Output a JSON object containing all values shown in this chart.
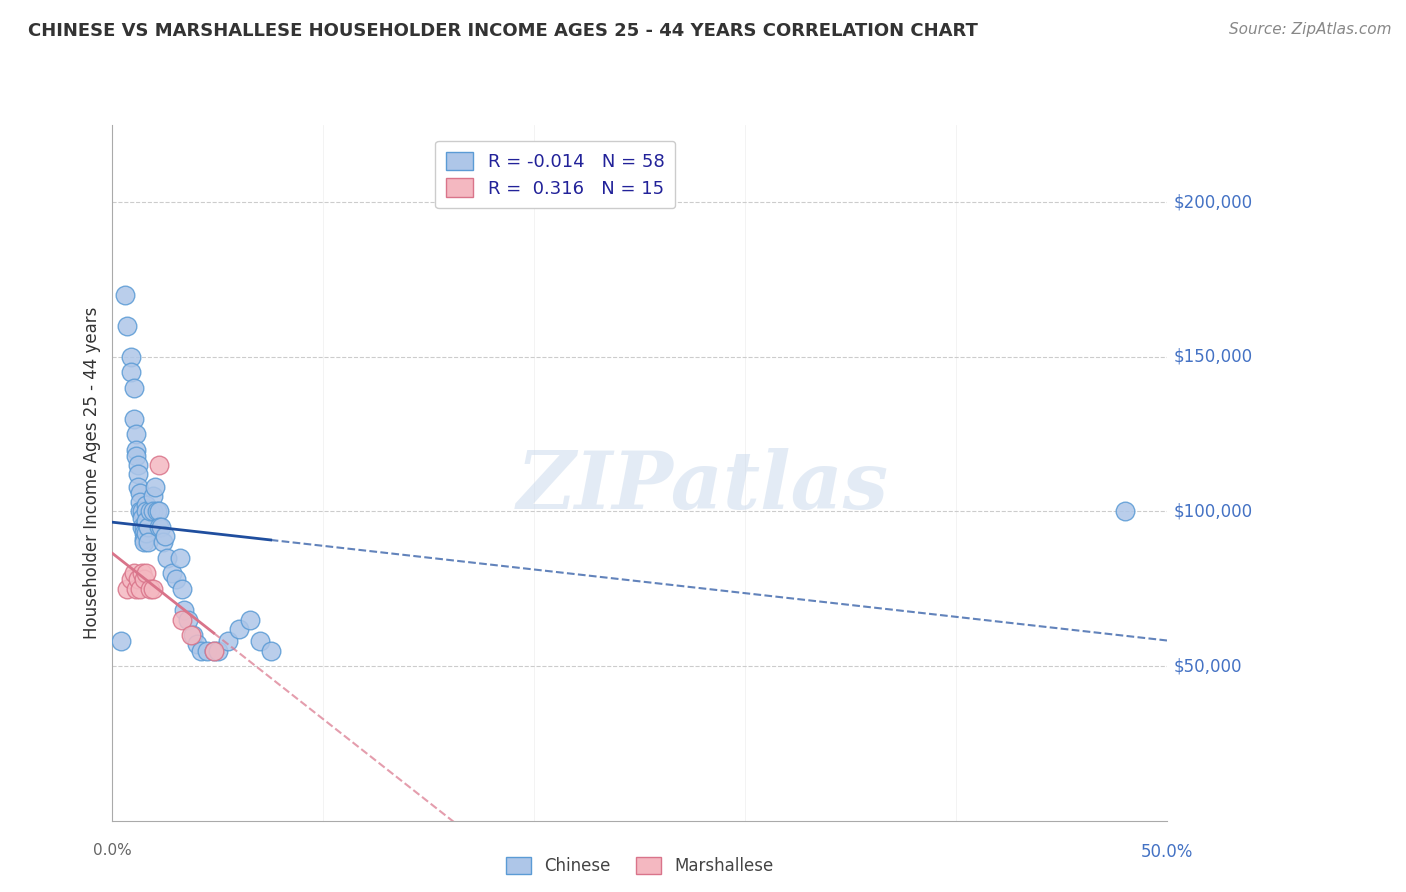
{
  "title": "CHINESE VS MARSHALLESE HOUSEHOLDER INCOME AGES 25 - 44 YEARS CORRELATION CHART",
  "source": "Source: ZipAtlas.com",
  "ylabel": "Householder Income Ages 25 - 44 years",
  "xlim": [
    0.0,
    0.5
  ],
  "ylim": [
    0,
    225000
  ],
  "ytick_labels": [
    "$50,000",
    "$100,000",
    "$150,000",
    "$200,000"
  ],
  "ytick_values": [
    50000,
    100000,
    150000,
    200000
  ],
  "chinese_color": "#aec6e8",
  "chinese_edge": "#5b9bd5",
  "marshallese_color": "#f4b8c1",
  "marshallese_edge": "#d9748a",
  "chinese_line_color": "#1f4e9e",
  "marshallese_line_color": "#d9748a",
  "watermark": "ZIPatlas",
  "chinese_x": [
    0.004,
    0.006,
    0.007,
    0.009,
    0.009,
    0.01,
    0.01,
    0.011,
    0.011,
    0.011,
    0.012,
    0.012,
    0.012,
    0.013,
    0.013,
    0.013,
    0.014,
    0.014,
    0.014,
    0.015,
    0.015,
    0.015,
    0.015,
    0.016,
    0.016,
    0.016,
    0.016,
    0.017,
    0.017,
    0.018,
    0.019,
    0.019,
    0.02,
    0.021,
    0.022,
    0.022,
    0.023,
    0.024,
    0.025,
    0.026,
    0.028,
    0.03,
    0.032,
    0.033,
    0.034,
    0.036,
    0.038,
    0.04,
    0.042,
    0.045,
    0.048,
    0.05,
    0.055,
    0.06,
    0.065,
    0.07,
    0.075,
    0.48
  ],
  "chinese_y": [
    58000,
    170000,
    160000,
    150000,
    145000,
    140000,
    130000,
    125000,
    120000,
    118000,
    115000,
    112000,
    108000,
    106000,
    103000,
    100000,
    100000,
    98000,
    95000,
    95000,
    93000,
    91000,
    90000,
    102000,
    100000,
    97000,
    93000,
    95000,
    90000,
    100000,
    105000,
    100000,
    108000,
    100000,
    100000,
    95000,
    95000,
    90000,
    92000,
    85000,
    80000,
    78000,
    85000,
    75000,
    68000,
    65000,
    60000,
    57000,
    55000,
    55000,
    55000,
    55000,
    58000,
    62000,
    65000,
    58000,
    55000,
    100000
  ],
  "marshallese_x": [
    0.007,
    0.009,
    0.01,
    0.011,
    0.012,
    0.013,
    0.014,
    0.015,
    0.016,
    0.018,
    0.019,
    0.022,
    0.033,
    0.037,
    0.048
  ],
  "marshallese_y": [
    75000,
    78000,
    80000,
    75000,
    78000,
    75000,
    80000,
    78000,
    80000,
    75000,
    75000,
    115000,
    65000,
    60000,
    55000
  ],
  "background_color": "#ffffff",
  "grid_color": "#cccccc",
  "right_label_color": "#4472c4",
  "source_color": "#888888",
  "title_color": "#333333"
}
